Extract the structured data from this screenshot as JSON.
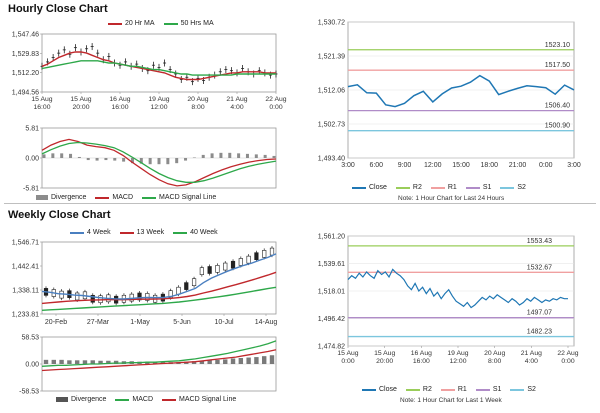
{
  "sections": {
    "hourly_title": "Hourly Close Chart",
    "weekly_title": "Weekly Close Chart"
  },
  "colors": {
    "ma_short": "#c0282c",
    "ma_long": "#2ea84a",
    "ma_week4": "#4a7fc0",
    "price": "#222222",
    "divergence": "#8c8c8c",
    "close": "#1f77b4",
    "r2": "#9acd5a",
    "r1": "#f0a0a0",
    "s1": "#b08cc8",
    "s2": "#7cc6de"
  },
  "chart_data": [
    {
      "id": "hourly_price",
      "type": "line",
      "title": "",
      "legend": [
        "20 Hr MA",
        "50 Hrs MA"
      ],
      "x_ticks": [
        "15 Aug\n16:00",
        "15 Aug\n20:00",
        "16 Aug\n16:00",
        "19 Aug\n12:00",
        "20 Aug\n8:00",
        "21 Aug\n4:00",
        "22 Aug\n0:00"
      ],
      "y_ticks": [
        "1,547.46",
        "1,529.83",
        "1,512.20",
        "1,494.56"
      ],
      "ylim": [
        1494.56,
        1547.46
      ],
      "price": [
        1518,
        1522,
        1526,
        1530,
        1533,
        1529,
        1535,
        1531,
        1534,
        1536,
        1530,
        1524,
        1527,
        1521,
        1519,
        1522,
        1518,
        1520,
        1516,
        1514,
        1519,
        1517,
        1521,
        1515,
        1511,
        1506,
        1508,
        1504,
        1507,
        1505,
        1508,
        1510,
        1513,
        1515,
        1514,
        1512,
        1516,
        1513,
        1511,
        1514,
        1512,
        1510,
        1511
      ],
      "ma20": [
        1518,
        1520,
        1523,
        1526,
        1528,
        1530,
        1531,
        1531,
        1530,
        1528,
        1526,
        1524,
        1523,
        1521,
        1520,
        1519,
        1518,
        1517,
        1516,
        1515,
        1514,
        1513,
        1512,
        1510,
        1508,
        1507,
        1506,
        1506,
        1506,
        1507,
        1508,
        1509,
        1510,
        1511,
        1512,
        1512,
        1513,
        1513,
        1513,
        1513,
        1512,
        1512,
        1512
      ],
      "ma50": [
        1516,
        1517,
        1518,
        1519,
        1520,
        1521,
        1522,
        1523,
        1523,
        1523,
        1523,
        1522,
        1521,
        1521,
        1520,
        1519,
        1518,
        1518,
        1517,
        1516,
        1515,
        1515,
        1514,
        1513,
        1512,
        1511,
        1511,
        1510,
        1510,
        1510,
        1510,
        1510,
        1510,
        1510,
        1510,
        1511,
        1511,
        1511,
        1511,
        1511,
        1511,
        1511,
        1511
      ]
    },
    {
      "id": "hourly_macd",
      "type": "line",
      "title": "",
      "legend": [
        "Divergence",
        "MACD",
        "MACD Signal Line"
      ],
      "y_ticks": [
        "5.81",
        "0.00",
        "-5.81"
      ],
      "ylim": [
        -5.81,
        5.81
      ],
      "macd": [
        1.5,
        2.5,
        3.2,
        3.6,
        3.2,
        2.5,
        2.2,
        2.0,
        1.5,
        0.5,
        -0.8,
        -2.0,
        -3.2,
        -4.2,
        -5.0,
        -5.4,
        -5.2,
        -4.6,
        -3.8,
        -3.0,
        -2.3,
        -1.7,
        -1.2,
        -0.8,
        -0.5,
        -0.3,
        -0.2
      ],
      "signal": [
        0.8,
        1.6,
        2.3,
        2.8,
        3.0,
        2.9,
        2.7,
        2.4,
        2.0,
        1.2,
        0.2,
        -0.9,
        -2.0,
        -3.0,
        -3.8,
        -4.4,
        -4.7,
        -4.7,
        -4.4,
        -3.9,
        -3.3,
        -2.7,
        -2.1,
        -1.6,
        -1.2,
        -0.9,
        -0.6
      ],
      "divergence": [
        0.7,
        0.9,
        0.9,
        0.8,
        0.2,
        -0.4,
        -0.5,
        -0.4,
        -0.5,
        -0.7,
        -1.0,
        -1.1,
        -1.2,
        -1.2,
        -1.2,
        -1.0,
        -0.5,
        0.1,
        0.6,
        0.9,
        1.0,
        1.0,
        0.9,
        0.8,
        0.7,
        0.6,
        0.4
      ]
    },
    {
      "id": "hourly_close",
      "type": "line",
      "title": "",
      "legend": [
        "Close",
        "R2",
        "R1",
        "S1",
        "S2"
      ],
      "note": "Note: 1 Hour Chart for Last 24 Hours",
      "x_ticks": [
        "3:00",
        "6:00",
        "9:00",
        "12:00",
        "15:00",
        "18:00",
        "21:00",
        "0:00",
        "3:00"
      ],
      "y_ticks": [
        "1,530.72",
        "1,521.39",
        "1,512.06",
        "1,502.73",
        "1,493.40"
      ],
      "ylim": [
        1493.4,
        1530.72
      ],
      "close": [
        1513.0,
        1513.5,
        1511.3,
        1511.2,
        1508.0,
        1507.5,
        1508.4,
        1510.5,
        1511.7,
        1508.8,
        1511.0,
        1512.6,
        1513.1,
        1514.2,
        1516.0,
        1514.5,
        1510.8,
        1511.7,
        1512.5,
        1513.2,
        1513.0,
        1512.7,
        1510.9,
        1513.4,
        1512.1
      ],
      "levels": [
        {
          "name": "R2",
          "value": 1523.1,
          "label": "1523.10"
        },
        {
          "name": "R1",
          "value": 1517.5,
          "label": "1517.50"
        },
        {
          "name": "S1",
          "value": 1506.4,
          "label": "1506.40"
        },
        {
          "name": "S2",
          "value": 1500.9,
          "label": "1500.90"
        }
      ]
    },
    {
      "id": "weekly_price",
      "type": "line",
      "title": "",
      "legend": [
        "4 Week",
        "13 Week",
        "40 Week"
      ],
      "x_ticks": [
        "20-Feb",
        "27-Mar",
        "1-May",
        "5-Jun",
        "10-Jul",
        "14-Aug"
      ],
      "y_ticks": [
        "1,546.71",
        "1,442.41",
        "1,338.11",
        "1,233.81"
      ],
      "ylim": [
        1233.81,
        1546.71
      ],
      "price": [
        1330,
        1325,
        1318,
        1320,
        1310,
        1315,
        1300,
        1298,
        1302,
        1296,
        1300,
        1305,
        1310,
        1308,
        1300,
        1305,
        1320,
        1335,
        1355,
        1372,
        1420,
        1425,
        1430,
        1440,
        1448,
        1460,
        1470,
        1485,
        1495,
        1505
      ],
      "ma4": [
        1332,
        1328,
        1322,
        1320,
        1316,
        1314,
        1310,
        1305,
        1302,
        1300,
        1299,
        1301,
        1304,
        1306,
        1305,
        1305,
        1310,
        1320,
        1332,
        1345,
        1370,
        1390,
        1405,
        1420,
        1433,
        1445,
        1455,
        1468,
        1480,
        1495
      ],
      "ma13": [
        1280,
        1283,
        1286,
        1289,
        1291,
        1293,
        1294,
        1295,
        1296,
        1296,
        1296,
        1297,
        1298,
        1298,
        1299,
        1300,
        1302,
        1305,
        1310,
        1316,
        1325,
        1333,
        1342,
        1352,
        1361,
        1371,
        1381,
        1392,
        1403,
        1415
      ],
      "ma40": [
        1250,
        1252,
        1254,
        1256,
        1258,
        1260,
        1262,
        1264,
        1266,
        1268,
        1270,
        1272,
        1274,
        1276,
        1278,
        1280,
        1283,
        1286,
        1290,
        1294,
        1299,
        1304,
        1309,
        1314,
        1320,
        1326,
        1332,
        1338,
        1344,
        1350
      ]
    },
    {
      "id": "weekly_macd",
      "type": "line",
      "title": "",
      "legend": [
        "Divergence",
        "MACD",
        "MACD Signal Line"
      ],
      "y_ticks": [
        "58.53",
        "0.00",
        "-58.53"
      ],
      "ylim": [
        -58.53,
        58.53
      ],
      "macd": [
        -5,
        -4,
        -3,
        -3,
        -2,
        -1,
        0,
        0,
        1,
        2,
        2,
        3,
        3,
        4,
        4,
        5,
        6,
        7,
        9,
        11,
        14,
        17,
        20,
        23,
        27,
        31,
        35,
        39,
        44,
        50
      ],
      "signal": [
        -14,
        -13,
        -12,
        -11,
        -10,
        -9,
        -8,
        -7,
        -6,
        -5,
        -4,
        -3,
        -2,
        -1,
        0,
        1,
        2,
        3,
        4,
        5,
        7,
        9,
        11,
        13,
        15,
        18,
        21,
        24,
        27,
        31
      ],
      "divergence": [
        9,
        9,
        9,
        8,
        8,
        8,
        8,
        7,
        7,
        7,
        6,
        6,
        5,
        5,
        4,
        4,
        4,
        4,
        5,
        6,
        7,
        8,
        9,
        10,
        12,
        13,
        14,
        15,
        17,
        19
      ]
    },
    {
      "id": "weekly_close",
      "type": "line",
      "title": "",
      "legend": [
        "Close",
        "R2",
        "R1",
        "S1",
        "S2"
      ],
      "note": "Note: 1 Hour Chart for Last 1 Week",
      "x_ticks": [
        "15 Aug\n0:00",
        "15 Aug\n20:00",
        "16 Aug\n16:00",
        "19 Aug\n12:00",
        "20 Aug\n8:00",
        "21 Aug\n4:00",
        "22 Aug\n0:00"
      ],
      "y_ticks": [
        "1,561.20",
        "1,539.61",
        "1,518.01",
        "1,496.42",
        "1,474.82"
      ],
      "ylim": [
        1474.82,
        1561.2
      ],
      "close": [
        1527,
        1530,
        1528,
        1532,
        1529,
        1533,
        1530,
        1528,
        1534,
        1531,
        1533,
        1529,
        1535,
        1532,
        1530,
        1527,
        1522,
        1519,
        1524,
        1518,
        1521,
        1516,
        1520,
        1514,
        1517,
        1512,
        1516,
        1519,
        1514,
        1510,
        1508,
        1506,
        1509,
        1505,
        1507,
        1510,
        1513,
        1511,
        1514,
        1512,
        1515,
        1513,
        1511,
        1509,
        1512,
        1510,
        1507,
        1509,
        1512,
        1510,
        1513,
        1511,
        1509,
        1511,
        1510,
        1512,
        1511,
        1513,
        1512,
        1512
      ],
      "levels": [
        {
          "name": "R2",
          "value": 1553.43,
          "label": "1553.43"
        },
        {
          "name": "R1",
          "value": 1532.67,
          "label": "1532.67"
        },
        {
          "name": "S1",
          "value": 1497.07,
          "label": "1497.07"
        },
        {
          "name": "S2",
          "value": 1482.23,
          "label": "1482.23"
        }
      ]
    }
  ]
}
